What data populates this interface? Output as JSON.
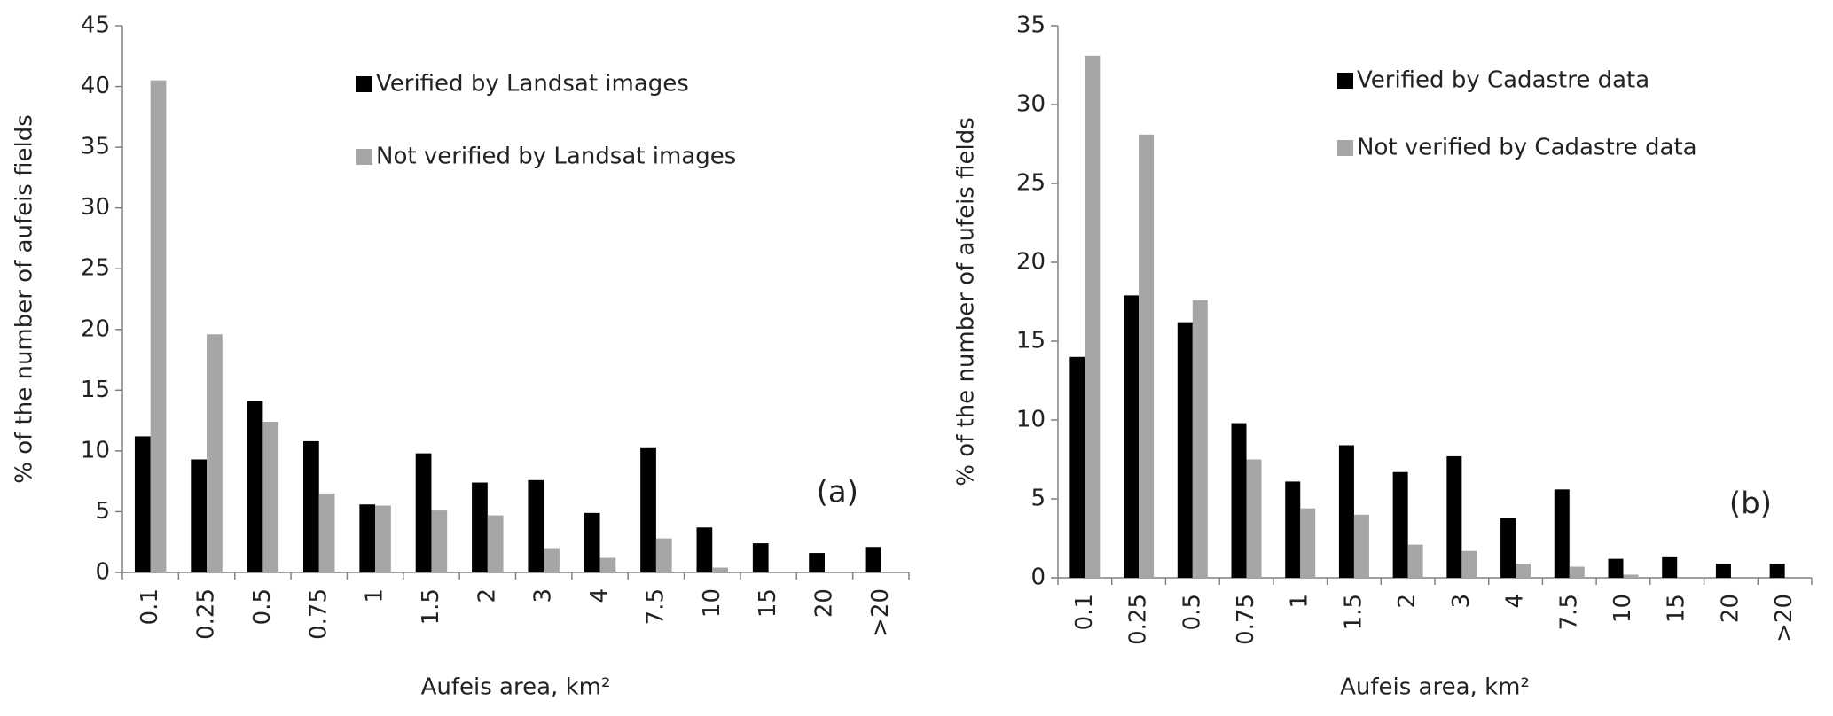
{
  "chart_data": [
    {
      "type": "bar",
      "annotation": "(a)",
      "y_label": "% of the number of aufeis fields",
      "x_label": "Aufeis area,  km²",
      "categories": [
        "0.1",
        "0.25",
        "0.5",
        "0.75",
        "1",
        "1.5",
        "2",
        "3",
        "4",
        "7.5",
        "10",
        "15",
        "20",
        ">20"
      ],
      "series": [
        {
          "name": "Verified by Landsat images",
          "color": "#000000",
          "values": [
            11.2,
            9.3,
            14.1,
            10.8,
            5.6,
            9.8,
            7.4,
            7.6,
            4.9,
            10.3,
            3.7,
            2.4,
            1.6,
            2.1
          ]
        },
        {
          "name": "Not verified by Landsat images",
          "color": "#a6a6a6",
          "values": [
            40.5,
            19.6,
            12.4,
            6.5,
            5.5,
            5.1,
            4.7,
            2.0,
            1.2,
            2.8,
            0.4,
            0,
            0,
            0
          ]
        }
      ],
      "ylim": [
        0,
        45
      ],
      "yticks": [
        0,
        5,
        10,
        15,
        20,
        25,
        30,
        35,
        40,
        45
      ],
      "grid": false
    },
    {
      "type": "bar",
      "annotation": "(b)",
      "y_label": "% of the number of aufeis fields",
      "x_label": "Aufeis area,  km²",
      "categories": [
        "0.1",
        "0.25",
        "0.5",
        "0.75",
        "1",
        "1.5",
        "2",
        "3",
        "4",
        "7.5",
        "10",
        "15",
        "20",
        ">20"
      ],
      "series": [
        {
          "name": "Verified by Cadastre data",
          "color": "#000000",
          "values": [
            14.0,
            17.9,
            16.2,
            9.8,
            6.1,
            8.4,
            6.7,
            7.7,
            3.8,
            5.6,
            1.2,
            1.3,
            0.9,
            0.9
          ]
        },
        {
          "name": "Not verified by Cadastre data",
          "color": "#a6a6a6",
          "values": [
            33.1,
            28.1,
            17.6,
            7.5,
            4.4,
            4.0,
            2.1,
            1.7,
            0.9,
            0.7,
            0.2,
            0,
            0,
            0
          ]
        }
      ],
      "ylim": [
        0,
        35
      ],
      "yticks": [
        0,
        5,
        10,
        15,
        20,
        25,
        30,
        35
      ],
      "grid": false
    }
  ]
}
